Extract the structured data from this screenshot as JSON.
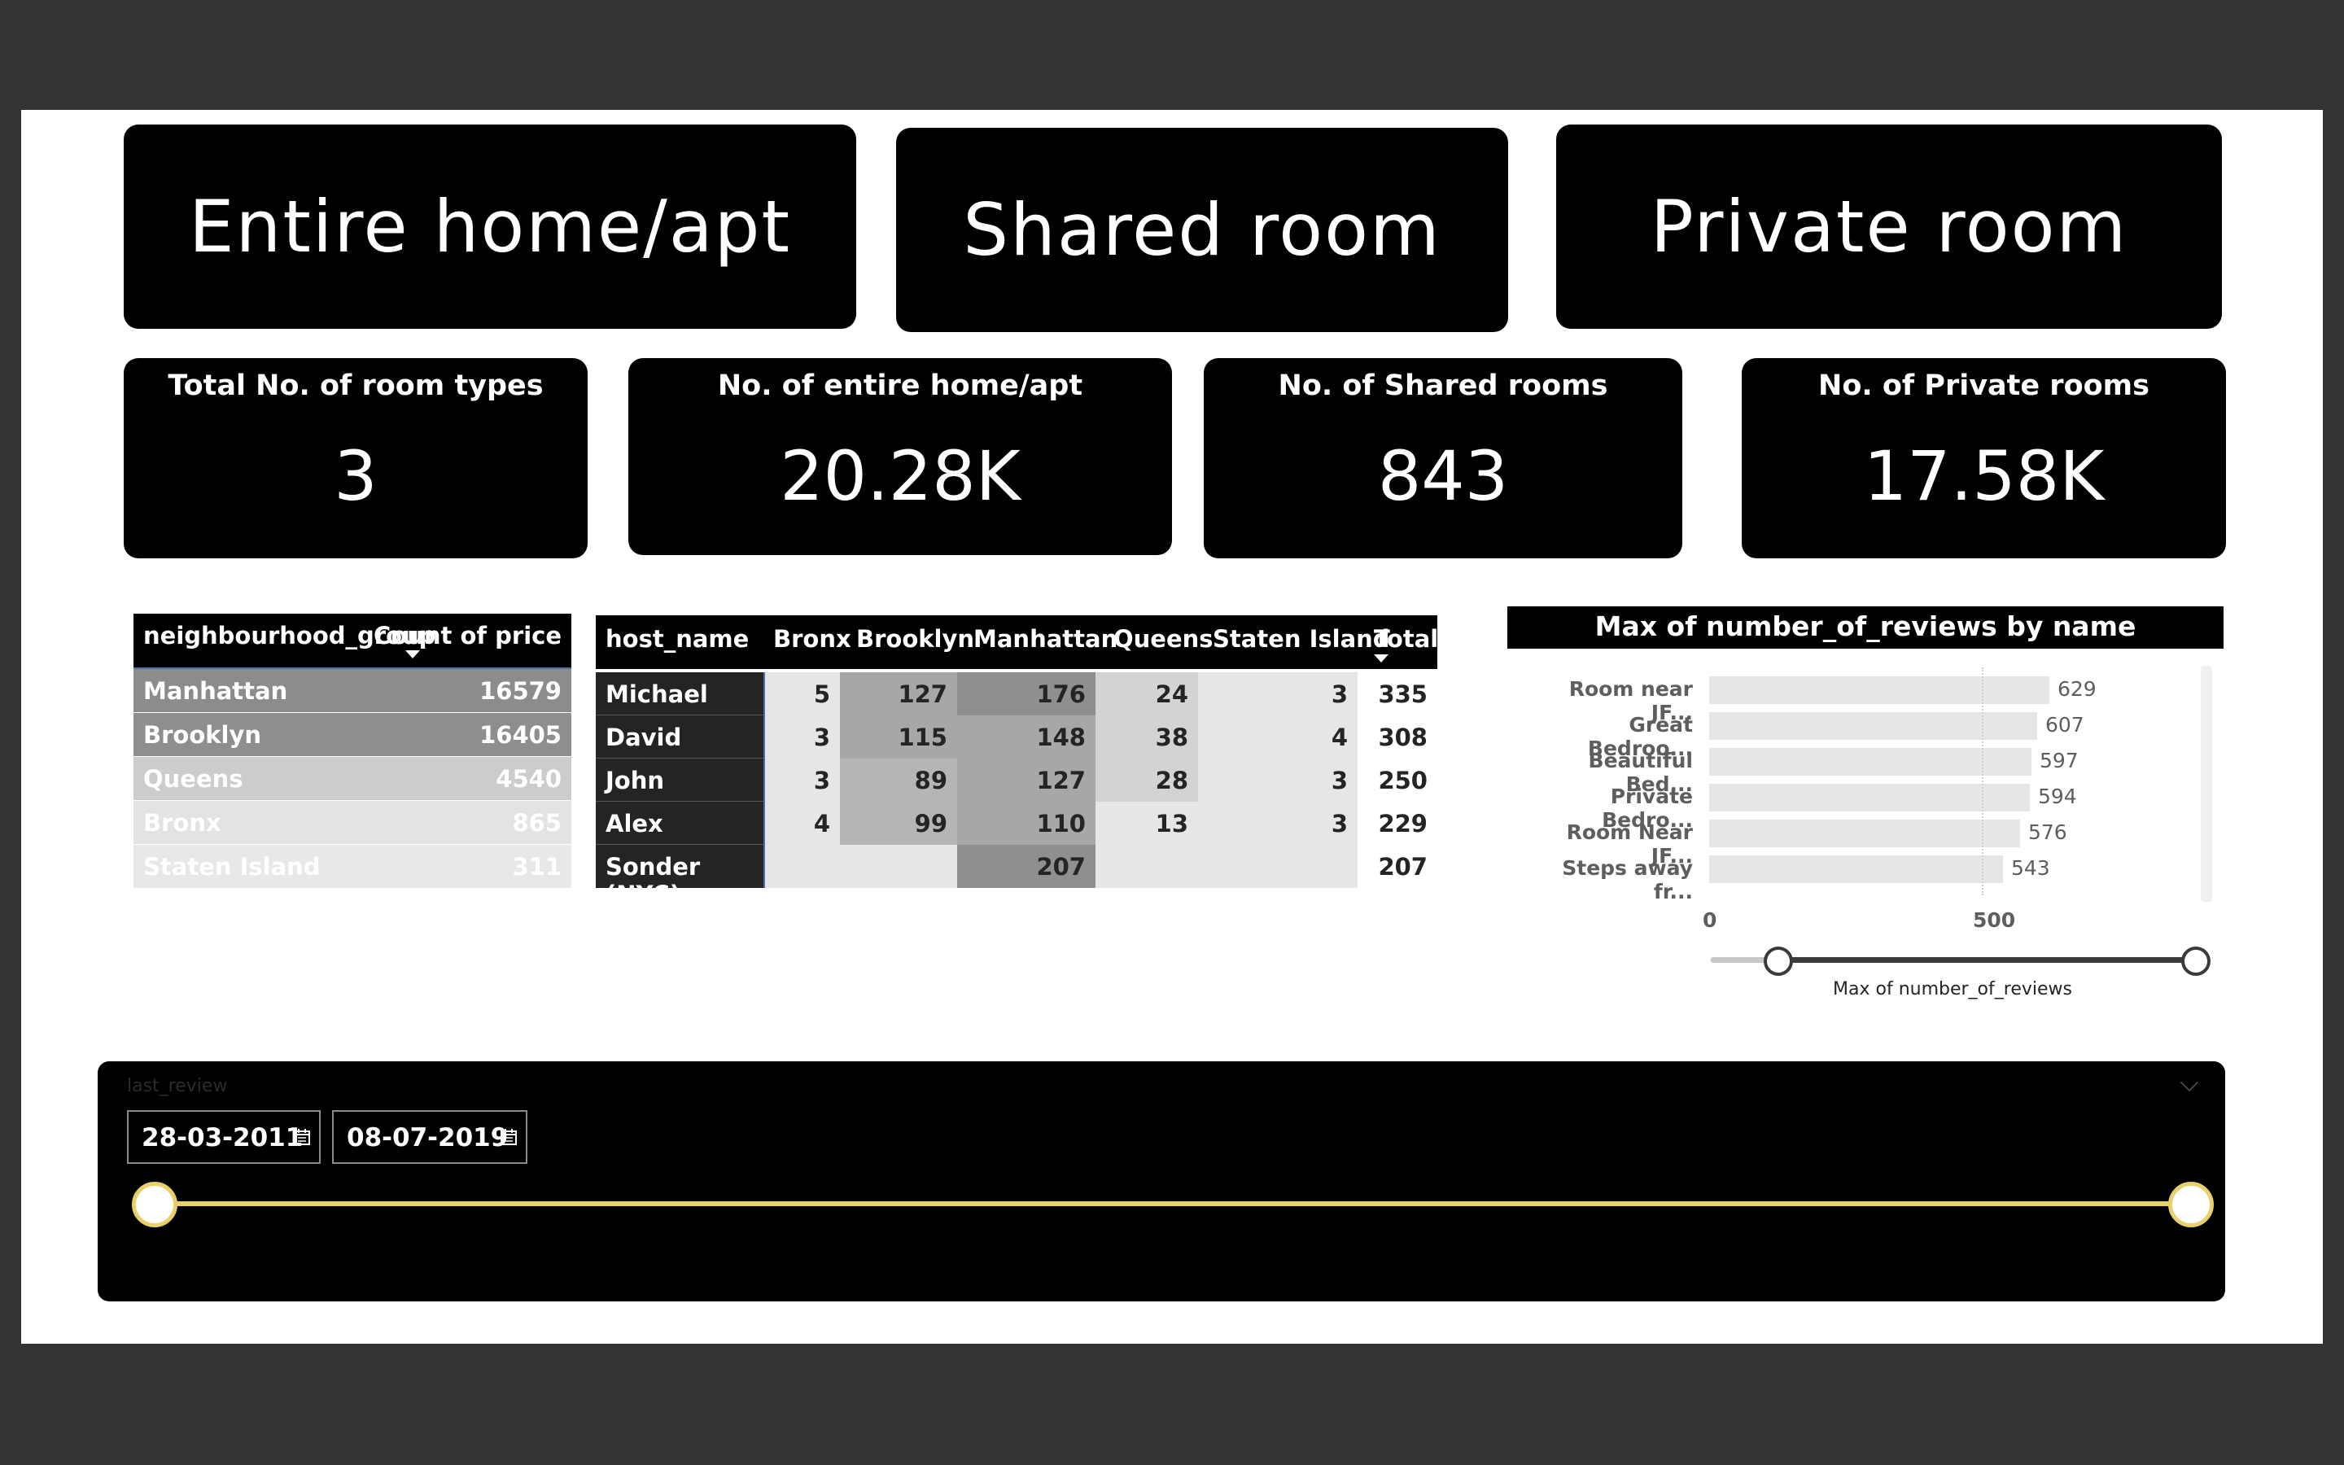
{
  "room_cards": [
    {
      "label": "Entire home/apt"
    },
    {
      "label": "Shared room"
    },
    {
      "label": "Private room"
    }
  ],
  "kpis": [
    {
      "label": "Total No. of room types",
      "value": "3"
    },
    {
      "label": "No. of entire home/apt",
      "value": "20.28K"
    },
    {
      "label": "No. of Shared rooms",
      "value": "843"
    },
    {
      "label": "No. of Private rooms",
      "value": "17.58K"
    }
  ],
  "neighbourhood_table": {
    "headers": [
      "neighbourhood_group",
      "Count of price"
    ],
    "rows": [
      {
        "name": "Manhattan",
        "count": "16579",
        "bg": "#8c8c8c"
      },
      {
        "name": "Brooklyn",
        "count": "16405",
        "bg": "#8e8e8e"
      },
      {
        "name": "Queens",
        "count": "4540",
        "bg": "#cccccc"
      },
      {
        "name": "Bronx",
        "count": "865",
        "bg": "#e3e3e3"
      },
      {
        "name": "Staten Island",
        "count": "311",
        "bg": "#e8e8e8"
      }
    ]
  },
  "host_matrix": {
    "headers": [
      "host_name",
      "Bronx",
      "Brooklyn",
      "Manhattan",
      "Queens",
      "Staten Island",
      "Total"
    ],
    "rows": [
      {
        "name": "Michael",
        "values": [
          "5",
          "127",
          "176",
          "24",
          "3",
          "335"
        ]
      },
      {
        "name": "David",
        "values": [
          "3",
          "115",
          "148",
          "38",
          "4",
          "308"
        ]
      },
      {
        "name": "John",
        "values": [
          "3",
          "89",
          "127",
          "28",
          "3",
          "250"
        ]
      },
      {
        "name": "Alex",
        "values": [
          "4",
          "99",
          "110",
          "13",
          "3",
          "229"
        ]
      },
      {
        "name": "Sonder (NYC)",
        "values": [
          "",
          "",
          "207",
          "",
          "",
          "207"
        ]
      }
    ]
  },
  "chart_data": {
    "type": "bar",
    "title": "Max of number_of_reviews by name",
    "categories": [
      "Room near JF...",
      "Great Bedroo...",
      "Beautiful Bed...",
      "Private Bedro...",
      "Room Near JF...",
      "Steps away fr..."
    ],
    "values": [
      629,
      607,
      597,
      594,
      576,
      543
    ],
    "xticks": [
      "0",
      "500"
    ],
    "xlim": [
      0,
      720
    ],
    "slider_label": "Max of number_of_reviews",
    "slider_min_fraction": 0.14
  },
  "date_slicer": {
    "label": "last_review",
    "start": "28-03-2011",
    "end": "08-07-2019"
  },
  "colors": {
    "slicer_track": "#e8d06a",
    "bar_fill": "#e6e6e6"
  }
}
